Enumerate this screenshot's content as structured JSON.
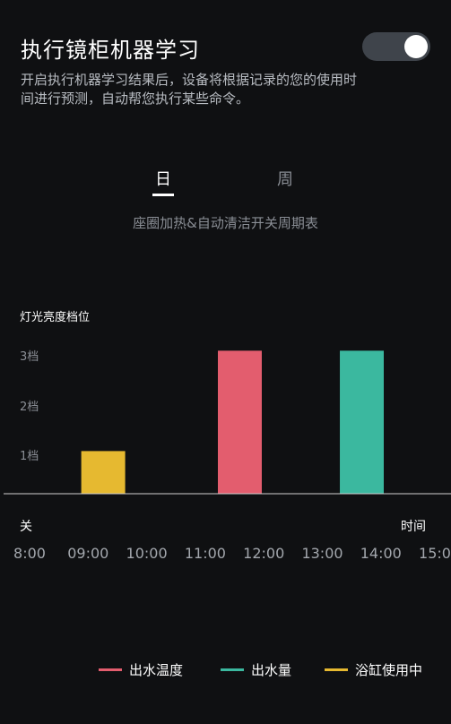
{
  "header": {
    "title": "执行镜柜机器学习",
    "toggle_on": true,
    "description": "开启执行机器学习结果后，设备将根据记录的您的使用时间进行预测，自动帮您执行某些命令。"
  },
  "tabs": [
    {
      "label": "日",
      "active": true
    },
    {
      "label": "周",
      "active": false
    }
  ],
  "chart_title": "座圈加热&自动清洁开关周期表",
  "chart_data": {
    "type": "bar",
    "ylabel": "灯光亮度档位",
    "yticks": [
      "1档",
      "2档",
      "3档"
    ],
    "ylim": [
      0,
      3
    ],
    "x_start_label": "关",
    "xlabel": "时间",
    "categories": [
      "8:00",
      "09:00",
      "10:00",
      "11:00",
      "12:00",
      "13:00",
      "14:00",
      "15:00"
    ],
    "bars": [
      {
        "start": "09:15",
        "end": "10:00",
        "value": 0.85,
        "series": "浴缸使用中"
      },
      {
        "start": "11:35",
        "end": "12:20",
        "value": 2.85,
        "series": "出水温度"
      },
      {
        "start": "13:40",
        "end": "14:25",
        "value": 2.85,
        "series": "出水量"
      }
    ],
    "series": [
      {
        "name": "出水温度",
        "color": "#e35d6e"
      },
      {
        "name": "出水量",
        "color": "#3bb89f"
      },
      {
        "name": "浴缸使用中",
        "color": "#e6b930"
      }
    ]
  },
  "colors": {
    "background": "#0f1012",
    "toggle_track": "#3f444b",
    "axis": "#d0d0d0"
  }
}
